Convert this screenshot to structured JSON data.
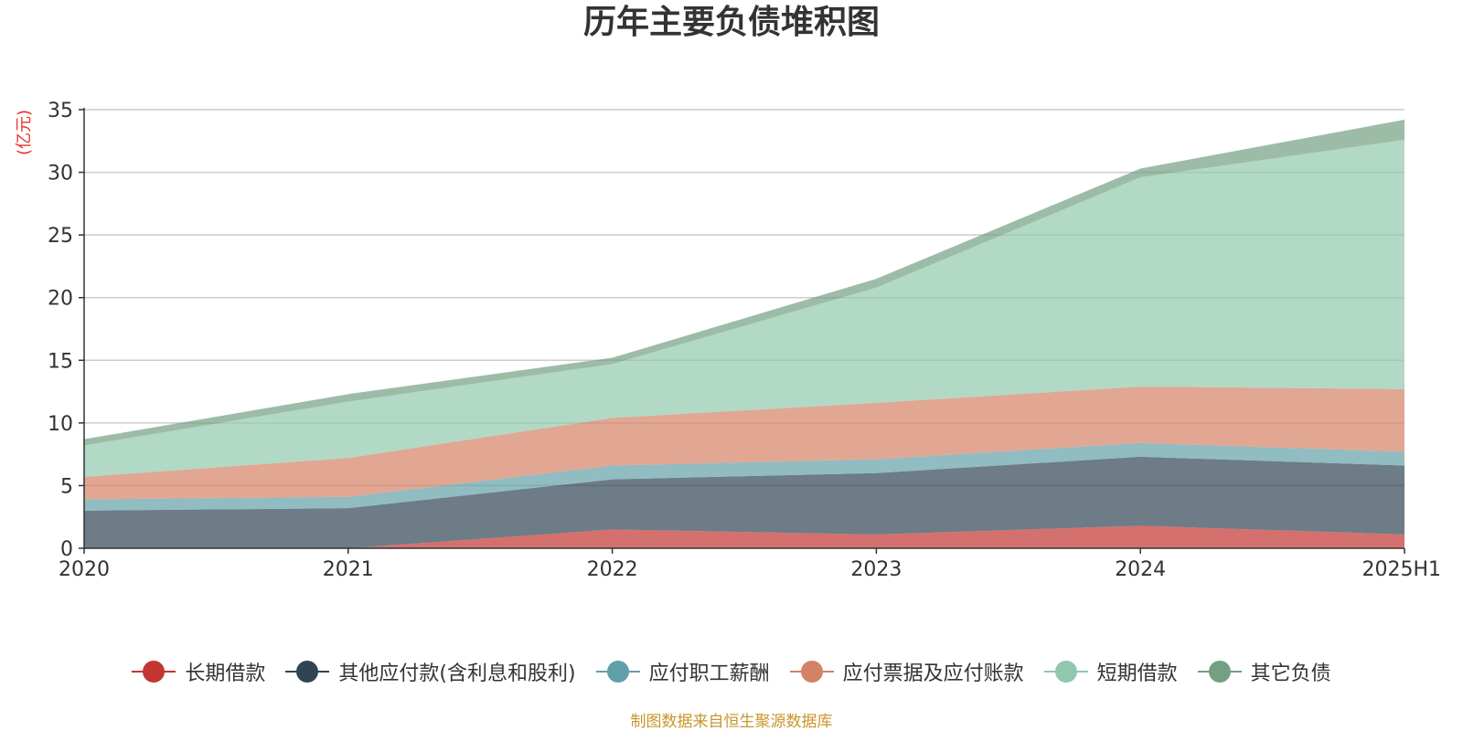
{
  "chart_data": {
    "type": "area",
    "stacked": true,
    "title": "历年主要负债堆积图",
    "y_unit_label": "(亿元)",
    "categories": [
      "2020",
      "2021",
      "2022",
      "2023",
      "2024",
      "2025H1"
    ],
    "ylim": [
      0,
      35
    ],
    "yticks": [
      0,
      5,
      10,
      15,
      20,
      25,
      30,
      35
    ],
    "grid": true,
    "legend_position": "bottom",
    "series": [
      {
        "name": "长期借款",
        "color": "#c23531",
        "values": [
          0,
          0,
          1.5,
          1.1,
          1.8,
          1.1
        ]
      },
      {
        "name": "其他应付款(含利息和股利)",
        "color": "#2f4554",
        "values": [
          3.0,
          3.2,
          4.0,
          4.9,
          5.5,
          5.5
        ]
      },
      {
        "name": "应付职工薪酬",
        "color": "#61a0a8",
        "values": [
          0.9,
          0.9,
          1.1,
          1.1,
          1.1,
          1.1
        ]
      },
      {
        "name": "应付票据及应付账款",
        "color": "#d48265",
        "values": [
          1.8,
          3.1,
          3.8,
          4.5,
          4.5,
          5.0
        ]
      },
      {
        "name": "短期借款",
        "color": "#91c7ae",
        "values": [
          2.5,
          4.5,
          4.3,
          9.2,
          16.7,
          19.9
        ]
      },
      {
        "name": "其它负债",
        "color": "#749f83",
        "values": [
          0.5,
          0.6,
          0.5,
          0.7,
          0.7,
          1.6
        ]
      }
    ]
  },
  "source_note": "制图数据来自恒生聚源数据库"
}
